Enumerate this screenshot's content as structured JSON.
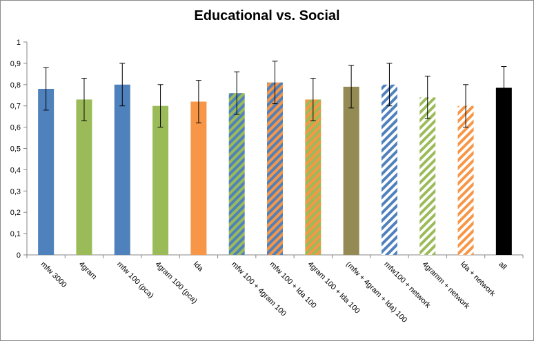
{
  "chart_data": {
    "type": "bar",
    "title": "Educational vs. Social",
    "xlabel": "",
    "ylabel": "",
    "ylim": [
      0,
      1
    ],
    "yticks": [
      "0",
      "0,1",
      "0,2",
      "0,3",
      "0,4",
      "0,5",
      "0,6",
      "0,7",
      "0,8",
      "0,9",
      "1"
    ],
    "grid": false,
    "legend": "none",
    "categories": [
      "mfw 3000",
      "4gram",
      "mfw 100 (pca)",
      "4gram 100 (pca)",
      "lda",
      "mfw 100 + 4gram 100",
      "mfw 100 + lda 100",
      "4gram 100 + lda 100",
      "(mfw + 4gram + lda) 100",
      "mfw100 + network",
      "4gramm + network",
      "lda + network",
      "all"
    ],
    "values": [
      0.78,
      0.73,
      0.8,
      0.7,
      0.72,
      0.76,
      0.81,
      0.73,
      0.79,
      0.8,
      0.74,
      0.7,
      0.785
    ],
    "errors": [
      0.1,
      0.1,
      0.1,
      0.1,
      0.1,
      0.1,
      0.1,
      0.1,
      0.1,
      0.1,
      0.1,
      0.1,
      0.1
    ],
    "fills": [
      {
        "style": "solid",
        "color": "#4f81bd"
      },
      {
        "style": "solid",
        "color": "#9bbb59"
      },
      {
        "style": "solid",
        "color": "#4f81bd"
      },
      {
        "style": "solid",
        "color": "#9bbb59"
      },
      {
        "style": "solid",
        "color": "#f79646"
      },
      {
        "style": "stripes",
        "color": "#9bbb59",
        "color2": "#4f81bd"
      },
      {
        "style": "stripes",
        "color": "#f79646",
        "color2": "#4f81bd"
      },
      {
        "style": "stripes",
        "color": "#f79646",
        "color2": "#9bbb59"
      },
      {
        "style": "solid",
        "color": "#948a54"
      },
      {
        "style": "stripes",
        "color": "#4f81bd",
        "color2": "#ffffff"
      },
      {
        "style": "stripes",
        "color": "#9bbb59",
        "color2": "#ffffff"
      },
      {
        "style": "stripes",
        "color": "#f79646",
        "color2": "#ffffff"
      },
      {
        "style": "solid",
        "color": "#000000"
      }
    ]
  }
}
